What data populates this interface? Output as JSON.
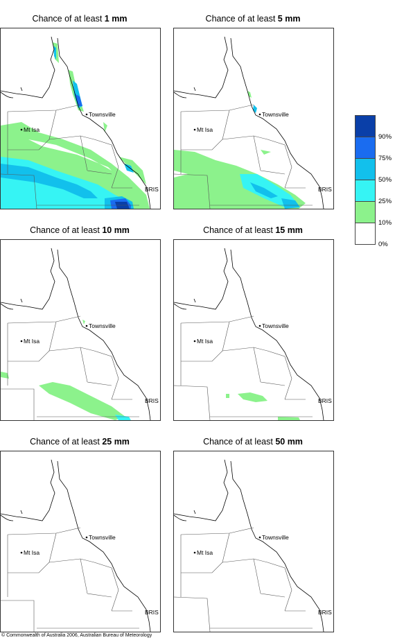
{
  "panels": [
    {
      "prefix": "Chance of at least ",
      "amount": "1 mm"
    },
    {
      "prefix": "Chance of at least ",
      "amount": "5 mm"
    },
    {
      "prefix": "Chance of at least ",
      "amount": "10 mm"
    },
    {
      "prefix": "Chance of at least ",
      "amount": "15 mm"
    },
    {
      "prefix": "Chance of at least ",
      "amount": "25 mm"
    },
    {
      "prefix": "Chance of at least ",
      "amount": "50 mm"
    }
  ],
  "places": {
    "townsville": "Townsville",
    "mt_isa": "Mt Isa",
    "bris": "BRIS"
  },
  "legend": {
    "labels": [
      "90%",
      "75%",
      "50%",
      "25%",
      "10%",
      "0%"
    ],
    "colors": [
      "#0a3fa8",
      "#1a6cf0",
      "#12c0ec",
      "#36f4f4",
      "#8cf28c",
      "#ffffff"
    ]
  },
  "credit": "© Commonwealth of Australia 2006, Australian Bureau of Meteorology"
}
